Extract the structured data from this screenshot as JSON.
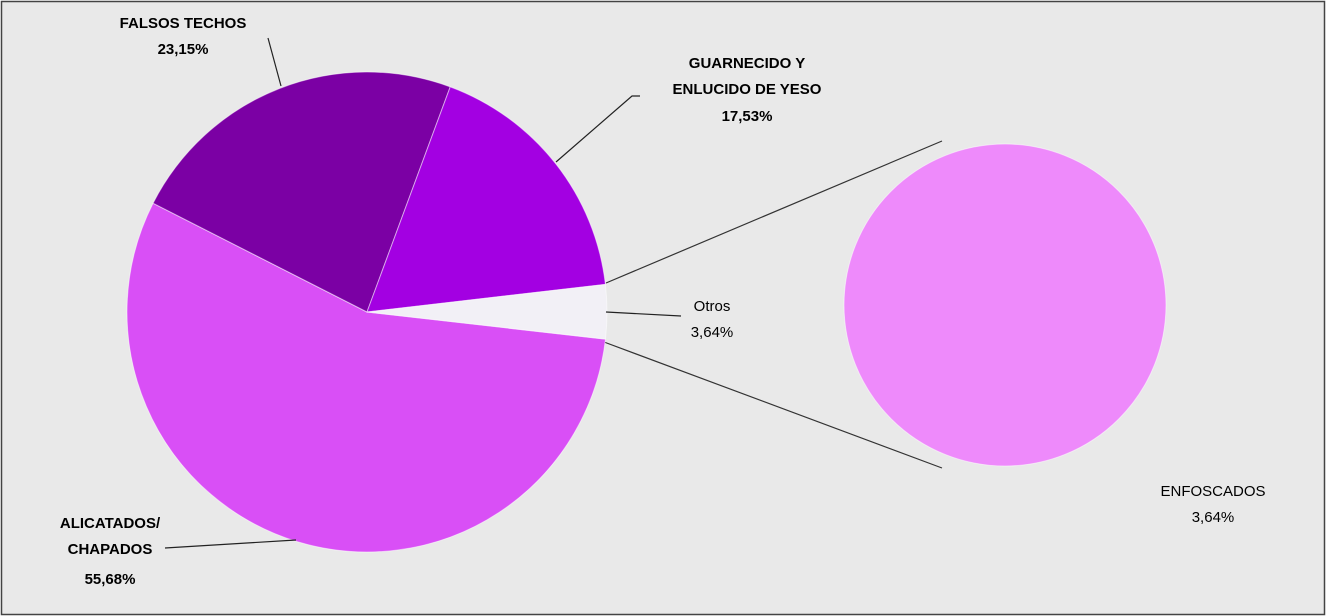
{
  "chart_data": {
    "type": "pie-of-pie",
    "categories": [
      "ALICATADOS/\nCHAPADOS",
      "FALSOS TECHOS",
      "GUARNECIDO Y\nENLUCIDO DE YESO",
      "Otros"
    ],
    "values": [
      55.68,
      23.15,
      17.53,
      3.64
    ],
    "value_labels": [
      "55,68%",
      "23,15%",
      "17,53%",
      "3,64%"
    ],
    "colors": [
      "#d94ff6",
      "#7b00a4",
      "#a300e2",
      "#f2f0f6"
    ],
    "secondary": {
      "categories": [
        "ENFOSCADOS"
      ],
      "values": [
        3.64
      ],
      "value_labels": [
        "3,64%"
      ],
      "colors": [
        "#ee8afb"
      ]
    }
  }
}
